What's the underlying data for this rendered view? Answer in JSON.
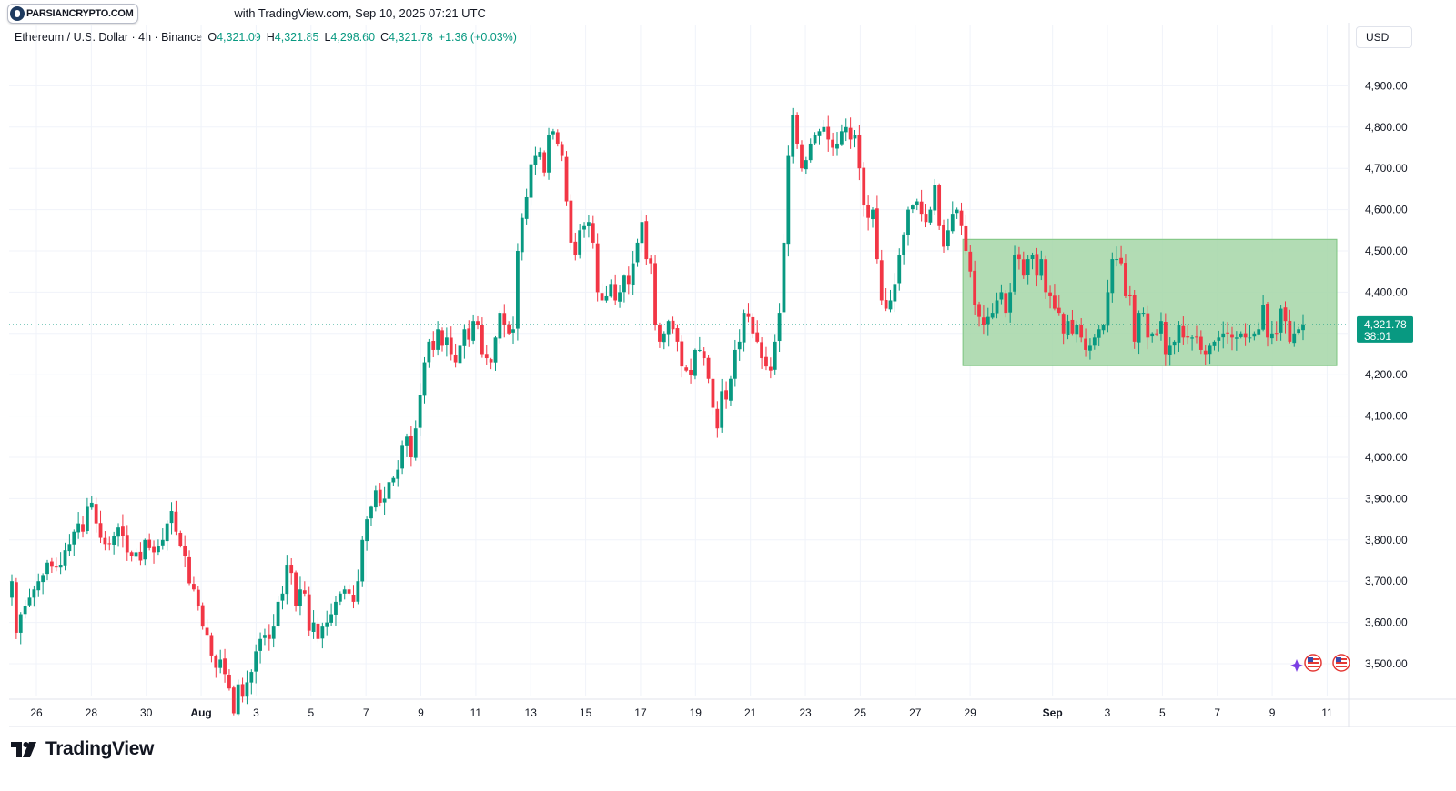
{
  "header": {
    "badge_text": "PARSIANCRYPTO.COM",
    "published": "with TradingView.com, Sep 10, 2025 07:21 UTC"
  },
  "legend": {
    "symbol": "Ethereum / U.S. Dollar · 4h · Binance",
    "o_label": "O",
    "o_value": "4,321.09",
    "h_label": "H",
    "h_value": "4,321.85",
    "l_label": "L",
    "l_value": "4,298.60",
    "c_label": "C",
    "c_value": "4,321.78",
    "change": "+1.36 (+0.03%)"
  },
  "currency": "USD",
  "price_tag": {
    "price": "4,321.78",
    "countdown": "38:01"
  },
  "footer": {
    "brand": "TradingView"
  },
  "colors": {
    "up": "#089981",
    "down": "#F23645",
    "zone_fill": "#A5D6A7",
    "zone_stroke": "#7CC47F",
    "grid": "#F0F3FA"
  },
  "icons": [
    "sparkle-icon",
    "us-flag-icon",
    "us-flag-icon"
  ],
  "chart_data": {
    "type": "candlestick",
    "timeframe": "4h",
    "ylim": [
      3480,
      4980
    ],
    "y_ticks": [
      "3,500.00",
      "3,600.00",
      "3,700.00",
      "3,800.00",
      "3,900.00",
      "4,000.00",
      "4,100.00",
      "4,200.00",
      "4,300.00",
      "4,400.00",
      "4,500.00",
      "4,600.00",
      "4,700.00",
      "4,800.00",
      "4,900.00"
    ],
    "y_tick_values": [
      3500,
      3600,
      3700,
      3800,
      3900,
      4000,
      4100,
      4200,
      4300,
      4400,
      4500,
      4600,
      4700,
      4800,
      4900
    ],
    "x_ticks": [
      {
        "label": "26",
        "day": 0
      },
      {
        "label": "28",
        "day": 2
      },
      {
        "label": "30",
        "day": 4
      },
      {
        "label": "Aug",
        "day": 6,
        "bold": true
      },
      {
        "label": "3",
        "day": 8
      },
      {
        "label": "5",
        "day": 10
      },
      {
        "label": "7",
        "day": 12
      },
      {
        "label": "9",
        "day": 14
      },
      {
        "label": "11",
        "day": 16
      },
      {
        "label": "13",
        "day": 18
      },
      {
        "label": "15",
        "day": 20
      },
      {
        "label": "17",
        "day": 22
      },
      {
        "label": "19",
        "day": 24
      },
      {
        "label": "21",
        "day": 26
      },
      {
        "label": "23",
        "day": 28
      },
      {
        "label": "25",
        "day": 30
      },
      {
        "label": "27",
        "day": 32
      },
      {
        "label": "29",
        "day": 34
      },
      {
        "label": "Sep",
        "day": 37,
        "bold": true
      },
      {
        "label": "3",
        "day": 39
      },
      {
        "label": "5",
        "day": 41
      },
      {
        "label": "7",
        "day": 43
      },
      {
        "label": "9",
        "day": 45
      },
      {
        "label": "11",
        "day": 47
      }
    ],
    "range_zone": {
      "high": 4528,
      "low": 4222,
      "start_day": 34,
      "end_day": 47
    },
    "last_price": 4321.78,
    "closes": [
      3700,
      3575,
      3620,
      3640,
      3660,
      3680,
      3700,
      3715,
      3745,
      3735,
      3735,
      3740,
      3775,
      3790,
      3820,
      3840,
      3820,
      3880,
      3890,
      3840,
      3805,
      3790,
      3790,
      3810,
      3830,
      3810,
      3770,
      3760,
      3770,
      3750,
      3800,
      3780,
      3770,
      3785,
      3800,
      3840,
      3870,
      3820,
      3785,
      3760,
      3695,
      3680,
      3640,
      3590,
      3570,
      3520,
      3490,
      3510,
      3475,
      3440,
      3380,
      3450,
      3420,
      3455,
      3480,
      3530,
      3560,
      3570,
      3560,
      3590,
      3650,
      3670,
      3740,
      3720,
      3640,
      3680,
      3670,
      3580,
      3600,
      3560,
      3590,
      3600,
      3620,
      3650,
      3670,
      3680,
      3670,
      3650,
      3700,
      3800,
      3850,
      3880,
      3920,
      3890,
      3900,
      3940,
      3950,
      3970,
      4030,
      4050,
      4000,
      4070,
      4150,
      4230,
      4280,
      4260,
      4310,
      4270,
      4290,
      4250,
      4230,
      4270,
      4310,
      4285,
      4330,
      4320,
      4250,
      4240,
      4230,
      4290,
      4350,
      4320,
      4300,
      4310,
      4500,
      4580,
      4630,
      4710,
      4730,
      4740,
      4690,
      4780,
      4790,
      4760,
      4730,
      4620,
      4520,
      4490,
      4550,
      4560,
      4570,
      4520,
      4400,
      4380,
      4390,
      4420,
      4380,
      4400,
      4440,
      4420,
      4470,
      4520,
      4570,
      4480,
      4470,
      4320,
      4280,
      4300,
      4330,
      4310,
      4280,
      4220,
      4210,
      4200,
      4260,
      4260,
      4240,
      4190,
      4120,
      4070,
      4160,
      4140,
      4190,
      4260,
      4280,
      4350,
      4340,
      4300,
      4280,
      4240,
      4220,
      4210,
      4280,
      4350,
      4520,
      4730,
      4830,
      4760,
      4700,
      4720,
      4760,
      4780,
      4790,
      4800,
      4770,
      4750,
      4760,
      4790,
      4800,
      4770,
      4780,
      4700,
      4610,
      4580,
      4600,
      4480,
      4380,
      4360,
      4380,
      4420,
      4490,
      4540,
      4600,
      4610,
      4620,
      4590,
      4570,
      4600,
      4660,
      4560,
      4510,
      4550,
      4590,
      4600,
      4560,
      4500,
      4450,
      4370,
      4340,
      4320,
      4340,
      4350,
      4380,
      4400,
      4350,
      4400,
      4490,
      4480,
      4440,
      4480,
      4490,
      4440,
      4480,
      4400,
      4390,
      4360,
      4350,
      4300,
      4330,
      4300,
      4320,
      4290,
      4260,
      4270,
      4290,
      4310,
      4320,
      4400,
      4480,
      4480,
      4470,
      4390,
      4390,
      4280,
      4350,
      4350,
      4290,
      4300,
      4300,
      4330,
      4250,
      4270,
      4280,
      4320,
      4290,
      4290,
      4290,
      4290,
      4260,
      4250,
      4270,
      4280,
      4290,
      4300,
      4300,
      4290,
      4290,
      4300,
      4290,
      4290,
      4300,
      4310,
      4370,
      4290,
      4300,
      4300,
      4360,
      4330,
      4280,
      4300,
      4310,
      4322
    ]
  }
}
